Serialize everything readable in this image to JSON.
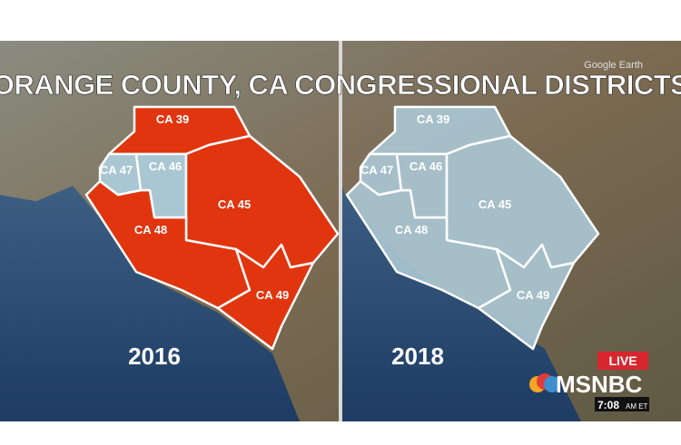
{
  "header": {
    "title": "ORANGE COUNTY, CA CONGRESSIONAL DISTRICTS",
    "watermark": "Google Earth"
  },
  "maps": [
    {
      "year": "2016",
      "districts": [
        {
          "label": "CA 39",
          "color": "#e0350f"
        },
        {
          "label": "CA 47",
          "color": "#a9c6d3"
        },
        {
          "label": "CA 46",
          "color": "#a9c6d3"
        },
        {
          "label": "CA 45",
          "color": "#e0350f"
        },
        {
          "label": "CA 48",
          "color": "#e0350f"
        },
        {
          "label": "CA 49",
          "color": "#e0350f"
        }
      ]
    },
    {
      "year": "2018",
      "districts": [
        {
          "label": "CA 39",
          "color": "#a9c6d3"
        },
        {
          "label": "CA 47",
          "color": "#a9c6d3"
        },
        {
          "label": "CA 46",
          "color": "#a9c6d3"
        },
        {
          "label": "CA 45",
          "color": "#a9c6d3"
        },
        {
          "label": "CA 48",
          "color": "#a9c6d3"
        },
        {
          "label": "CA 49",
          "color": "#a9c6d3"
        }
      ]
    }
  ],
  "logo": {
    "live": "LIVE",
    "network": "MSNBC",
    "time": "7:08",
    "period": "AM ET"
  }
}
